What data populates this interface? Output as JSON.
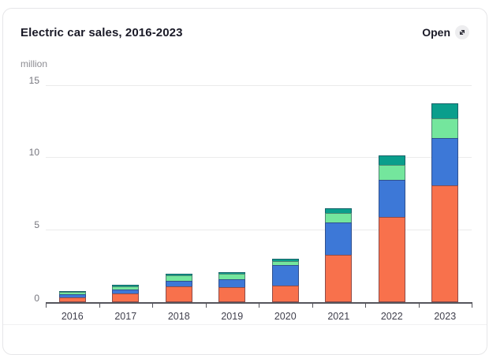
{
  "card": {
    "title": "Electric car sales, 2016-2023",
    "open_button": {
      "label": "Open",
      "icon": "expand-diagonal-icon"
    }
  },
  "chart_data": {
    "type": "bar",
    "stacked": true,
    "title": "Electric car sales, 2016-2023",
    "unit_label": "million",
    "categories": [
      "2016",
      "2017",
      "2018",
      "2019",
      "2020",
      "2021",
      "2022",
      "2023"
    ],
    "series": [
      {
        "name": "orange-bottom-segment",
        "color": "#f8714c",
        "values": [
          0.34,
          0.58,
          1.08,
          1.05,
          1.15,
          3.3,
          5.9,
          8.1
        ]
      },
      {
        "name": "blue-segment",
        "color": "#3d78d7",
        "values": [
          0.22,
          0.31,
          0.4,
          0.55,
          1.4,
          2.25,
          2.6,
          3.25
        ]
      },
      {
        "name": "green-segment",
        "color": "#74e69d",
        "values": [
          0.16,
          0.2,
          0.36,
          0.35,
          0.3,
          0.65,
          1.0,
          1.4
        ]
      },
      {
        "name": "teal-top-segment",
        "color": "#0a9e8c",
        "values": [
          0.06,
          0.09,
          0.12,
          0.15,
          0.17,
          0.32,
          0.68,
          1.05
        ]
      }
    ],
    "totals": [
      0.78,
      1.18,
      1.96,
      2.1,
      3.02,
      6.52,
      10.18,
      13.8
    ],
    "ylabel": "million",
    "xlabel": "",
    "yticks": [
      0,
      5,
      10,
      15
    ],
    "ylim": [
      0,
      15.8
    ],
    "grid": true,
    "legend": "none"
  },
  "colors": {
    "card_border": "#e6e6e8",
    "grid": "#ebebeb",
    "axis": "#55555c",
    "badge_bg": "#ededef",
    "title_text": "#1a1a27",
    "unit_text": "#8c8c92",
    "ytick_text": "#75757d",
    "xlabel_text": "#3f3f4c"
  }
}
